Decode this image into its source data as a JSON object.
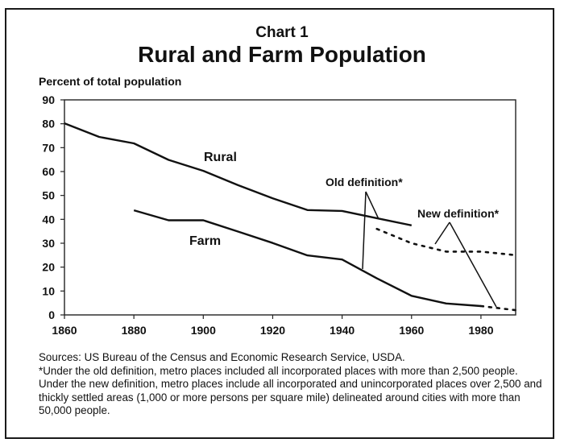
{
  "chart_number": "Chart 1",
  "chart_data": {
    "type": "line",
    "title": "Rural and Farm Population",
    "ylabel": "Percent of total population",
    "xlabel": "",
    "xlim": [
      1860,
      1990
    ],
    "ylim": [
      0,
      90
    ],
    "x_ticks": [
      1860,
      1880,
      1900,
      1920,
      1940,
      1960,
      1980
    ],
    "y_ticks": [
      0,
      10,
      20,
      30,
      40,
      50,
      60,
      70,
      80,
      90
    ],
    "grid": false,
    "series": [
      {
        "name": "Rural",
        "style": "solid",
        "points": [
          [
            1860,
            80.2
          ],
          [
            1870,
            74.5
          ],
          [
            1880,
            71.8
          ],
          [
            1890,
            64.9
          ],
          [
            1900,
            60.3
          ],
          [
            1910,
            54.3
          ],
          [
            1920,
            48.8
          ],
          [
            1930,
            43.9
          ],
          [
            1940,
            43.5
          ],
          [
            1950,
            40.5
          ],
          [
            1960,
            37.5
          ]
        ]
      },
      {
        "name": "Farm",
        "style": "solid",
        "points": [
          [
            1880,
            43.8
          ],
          [
            1890,
            39.6
          ],
          [
            1900,
            39.6
          ],
          [
            1910,
            34.9
          ],
          [
            1920,
            30.1
          ],
          [
            1930,
            24.9
          ],
          [
            1940,
            23.2
          ],
          [
            1950,
            15.3
          ],
          [
            1960,
            8.0
          ],
          [
            1970,
            4.8
          ],
          [
            1980,
            3.7
          ]
        ]
      },
      {
        "style": "dotted",
        "points": [
          [
            1950,
            36.0
          ],
          [
            1960,
            30.0
          ],
          [
            1970,
            26.5
          ],
          [
            1980,
            26.5
          ],
          [
            1990,
            25.0
          ]
        ]
      },
      {
        "style": "dotted",
        "points": [
          [
            1980,
            3.7
          ],
          [
            1990,
            2.0
          ]
        ]
      }
    ],
    "annotations": {
      "rural": "Rural",
      "farm": "Farm",
      "old_definition": "Old definition*",
      "new_definition": "New definition*"
    }
  },
  "footnotes": {
    "sources": "Sources:  US Bureau of the Census and Economic Research Service, USDA.",
    "definition": "*Under the old definition, metro places included all incorporated places with more than 2,500 people.  Under the new definition, metro places include all incorporated and unincorporated places over 2,500 and thickly settled areas (1,000 or more persons per square mile) delineated around cities with more than 50,000 people."
  }
}
